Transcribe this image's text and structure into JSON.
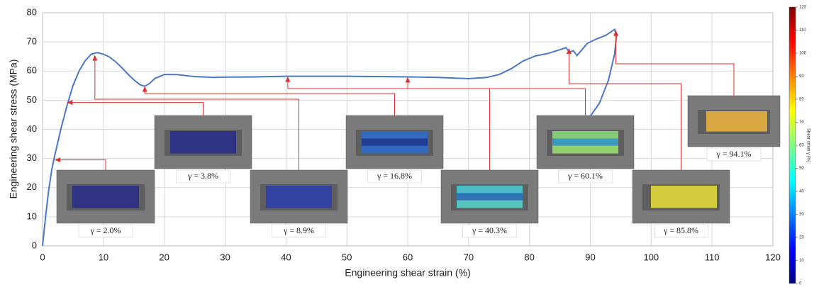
{
  "chart_data": {
    "type": "line",
    "x_label": "Engineering shear strain (%)",
    "y_label": "Engineering shear stress (MPa)",
    "xlim": [
      0,
      120
    ],
    "ylim": [
      0,
      80
    ],
    "xticks": [
      0,
      10,
      20,
      30,
      40,
      50,
      60,
      70,
      80,
      90,
      100,
      110,
      120
    ],
    "yticks": [
      0,
      10,
      20,
      30,
      40,
      50,
      60,
      70,
      80
    ],
    "grid": true,
    "color": "#4a78c4",
    "x": [
      0,
      0.5,
      1,
      1.5,
      2,
      3,
      4,
      5,
      6,
      7,
      8,
      9,
      10,
      11,
      12,
      13,
      14,
      15,
      16,
      16.8,
      17.5,
      18.5,
      20,
      22,
      25,
      28,
      30,
      35,
      40,
      45,
      50,
      55,
      60,
      65,
      70,
      73,
      75,
      77,
      79,
      81,
      83,
      85,
      86,
      86.6,
      87.2,
      87.8,
      88.5,
      89.5,
      91,
      92.5,
      94,
      94.3,
      94,
      93,
      91.5,
      89.5
    ],
    "values": [
      0,
      10,
      19,
      26,
      31,
      40,
      48,
      55,
      60,
      63.5,
      65.8,
      66.3,
      65.8,
      64.8,
      63.2,
      61.2,
      59,
      57,
      55.3,
      54.8,
      55.6,
      57.5,
      58.8,
      58.8,
      58.1,
      57.8,
      57.9,
      58,
      58.2,
      58.2,
      58.2,
      58.1,
      58,
      57.8,
      57.4,
      57.8,
      58.8,
      60.8,
      63.5,
      65.2,
      66,
      67.3,
      68,
      66.5,
      67,
      65.3,
      67,
      69.5,
      71,
      72.2,
      74.3,
      72,
      66,
      57,
      49,
      43
    ],
    "annotations": [
      {
        "text": "γ = 2.0%",
        "x": 2,
        "y": 29.5
      },
      {
        "text": "γ = 3.8%",
        "x": 4,
        "y": 49.2
      },
      {
        "text": "γ = 8.9%",
        "x": 8.6,
        "y": 65.5
      },
      {
        "text": "γ = 16.8%",
        "x": 16.8,
        "y": 54.8
      },
      {
        "text": "γ = 40.3%",
        "x": 40.3,
        "y": 58.2
      },
      {
        "text": "γ = 60.1%",
        "x": 60,
        "y": 58
      },
      {
        "text": "γ = 85.8%",
        "x": 86.5,
        "y": 67.8
      },
      {
        "text": "γ = 94.1%",
        "x": 94.2,
        "y": 74
      }
    ],
    "colorbar": {
      "label": "Shear strain γ (%)",
      "lim": [
        0,
        120
      ],
      "ticks": [
        0,
        10,
        20,
        30,
        40,
        50,
        60,
        70,
        80,
        90,
        100,
        110,
        120
      ]
    }
  }
}
